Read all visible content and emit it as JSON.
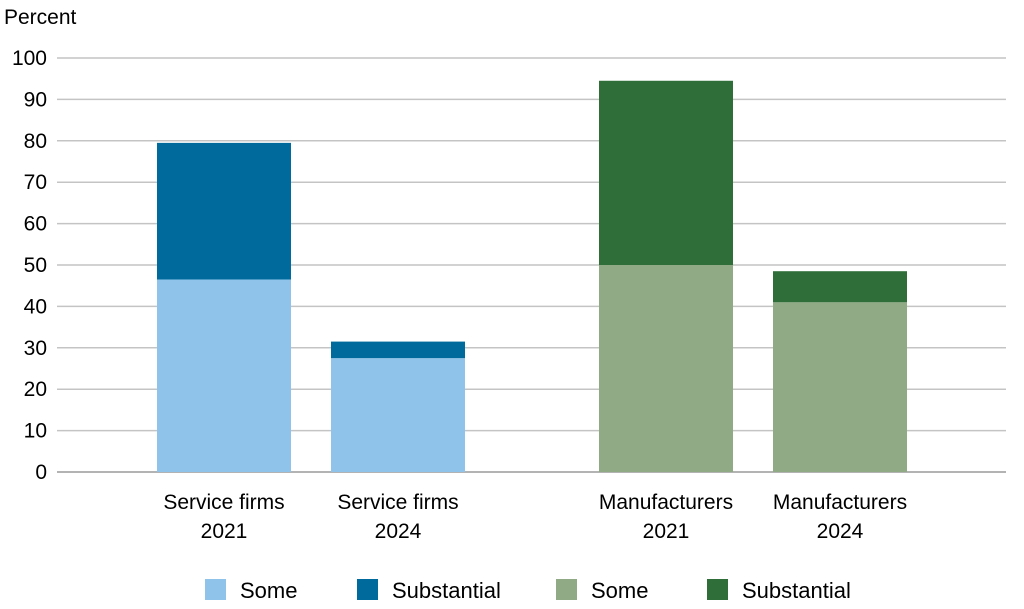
{
  "chart_data": {
    "type": "bar",
    "stacked": true,
    "ylabel": "Percent",
    "ylim": [
      0,
      100
    ],
    "yticks": [
      0,
      10,
      20,
      30,
      40,
      50,
      60,
      70,
      80,
      90,
      100
    ],
    "grid": true,
    "legend_position": "bottom",
    "categories": [
      {
        "line1": "Service firms",
        "line2": "2021",
        "group": "service"
      },
      {
        "line1": "Service firms",
        "line2": "2024",
        "group": "service"
      },
      {
        "line1": "Manufacturers",
        "line2": "2021",
        "group": "manufacturers"
      },
      {
        "line1": "Manufacturers",
        "line2": "2024",
        "group": "manufacturers"
      }
    ],
    "bars": [
      {
        "some": 46.5,
        "substantial": 33.0,
        "some_color": "#8fc3ea",
        "substantial_color": "#006a9c"
      },
      {
        "some": 27.5,
        "substantial": 4.0,
        "some_color": "#8fc3ea",
        "substantial_color": "#006a9c"
      },
      {
        "some": 50.0,
        "substantial": 44.5,
        "some_color": "#90aa86",
        "substantial_color": "#2f6e38"
      },
      {
        "some": 41.0,
        "substantial": 7.5,
        "some_color": "#90aa86",
        "substantial_color": "#2f6e38"
      }
    ],
    "legend": [
      {
        "label": "Some",
        "color": "#8fc3ea"
      },
      {
        "label": "Substantial",
        "color": "#006a9c"
      },
      {
        "label": "Some",
        "color": "#90aa86"
      },
      {
        "label": "Substantial",
        "color": "#2f6e38"
      }
    ]
  }
}
